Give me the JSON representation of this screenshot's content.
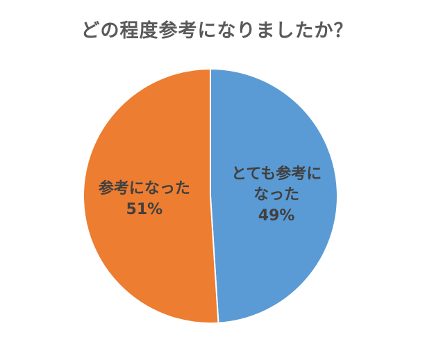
{
  "chart_data": {
    "type": "pie",
    "title": "どの程度参考になりましたか？",
    "slices": [
      {
        "label_lines": [
          "とても参考に",
          "なった"
        ],
        "value": 49,
        "value_label": "49%",
        "color": "#5b9bd5"
      },
      {
        "label_lines": [
          "参考になった"
        ],
        "value": 51,
        "value_label": "51%",
        "color": "#ed7d31"
      }
    ],
    "start": "top",
    "direction": "clockwise",
    "legend": "none"
  }
}
